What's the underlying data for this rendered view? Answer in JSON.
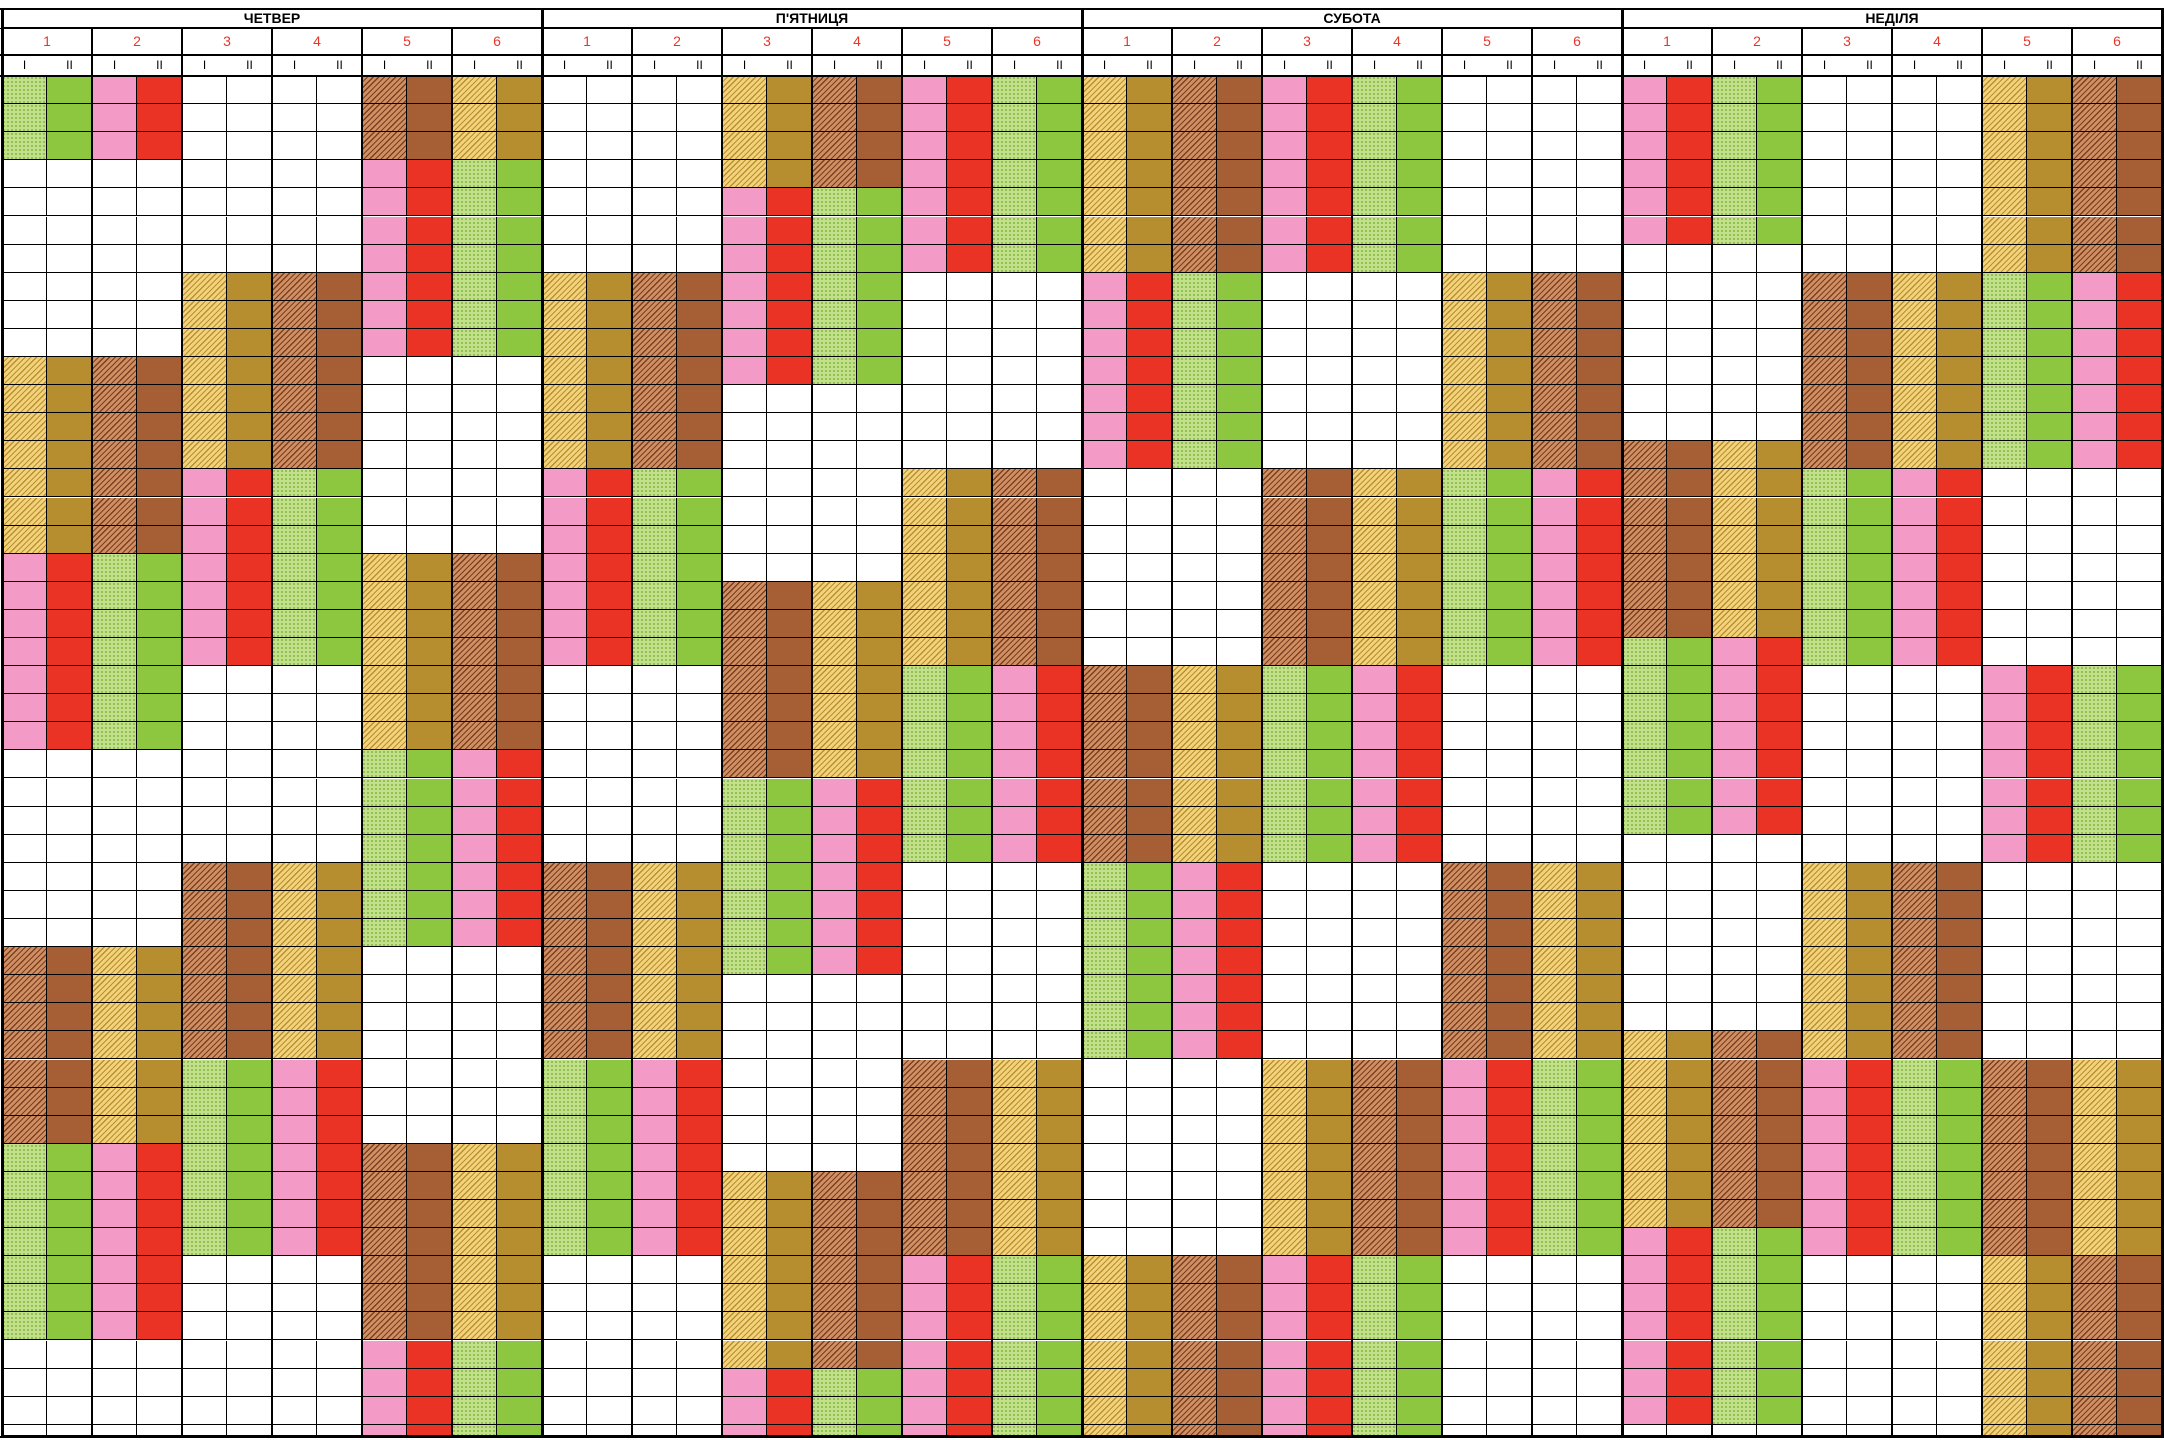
{
  "days": [
    {
      "name": "ЧЕТВЕР"
    },
    {
      "name": "П'ЯТНИЦЯ"
    },
    {
      "name": "СУБОТА"
    },
    {
      "name": "НЕДІЛЯ"
    }
  ],
  "teams": [
    "1",
    "2",
    "3",
    "4",
    "5",
    "6"
  ],
  "shifts": [
    "I",
    "II"
  ],
  "colors": {
    "c-pink": "#f49ac6",
    "c-red": "#ea3324",
    "c-lgreen": "#c3e08c",
    "c-green": "#8dc63f",
    "c-lgold": "#f2d27c",
    "c-gold": "#b68e30",
    "c-lbrown": "#cf8f63",
    "c-brown": "#a65f34"
  },
  "schedule": [
    [
      "G",
      "P",
      "W",
      "W",
      "B",
      "Y",
      "3",
      "G",
      "W",
      "Y",
      "B",
      "P",
      "G",
      "P",
      "Y",
      "B",
      "G",
      "W",
      "W",
      "W",
      "P",
      "G",
      "W",
      "Y",
      "B",
      "W",
      "W",
      "Y",
      "B"
    ],
    [
      "B",
      "Y",
      "P",
      "G",
      "W",
      "W",
      "2",
      "B",
      "W",
      "W",
      "Y",
      "B",
      "P",
      "G",
      "W",
      "Y",
      "B",
      "W",
      "W",
      "W",
      "G",
      "P",
      "W",
      "W",
      "Y",
      "B",
      "G",
      "B",
      "W"
    ],
    [
      "W",
      "P",
      "G",
      "W",
      "B",
      "Y",
      "3",
      "W",
      "P",
      "G",
      "W",
      "B",
      "Y",
      "3",
      "W",
      "B",
      "G",
      "P",
      "W",
      "Y",
      "B",
      "P",
      "G",
      "W",
      "B",
      "Y",
      "G",
      "P",
      "W"
    ],
    [
      "G",
      "P",
      "W",
      "W",
      "Y",
      "B",
      "3",
      "B",
      "W",
      "W",
      "P",
      "G",
      "Y",
      "3",
      "W",
      "Y",
      "B",
      "W",
      "P",
      "G",
      "W",
      "B",
      "Y",
      "G",
      "P",
      "W",
      "W",
      "Y",
      "W"
    ],
    [
      "Y",
      "B",
      "G",
      "P",
      "W",
      "W",
      "2",
      "P",
      "G",
      "W",
      "Y",
      "B",
      "W",
      "W",
      "W",
      "B",
      "Y",
      "G",
      "P",
      "W",
      "W",
      "G",
      "P",
      "W",
      "W",
      "Y",
      "B",
      "W",
      "W"
    ],
    [
      "B",
      "G",
      "P",
      "W",
      "W",
      "Y",
      "2",
      "B",
      "W",
      "W",
      "G",
      "P",
      "Y",
      "3",
      "W",
      "B",
      "Y",
      "W",
      "W",
      "P",
      "G",
      "G",
      "P",
      "W",
      "B",
      "Y",
      "W",
      "W",
      "W"
    ],
    [
      "W",
      "W",
      "B",
      "Y",
      "G",
      "P",
      "3",
      "Y",
      "B",
      "W",
      "P",
      "G",
      "W",
      "W",
      "Y",
      "B",
      "W",
      "W",
      "B",
      "Y",
      "G",
      "P",
      "W",
      "W",
      "B",
      "Y",
      "W",
      "P",
      "W"
    ],
    [
      "P",
      "G",
      "W",
      "W",
      "Y",
      "B",
      "3",
      "W",
      "W",
      "W",
      "Y",
      "B",
      "P",
      "G",
      "Y",
      "B",
      "P",
      "G",
      "W",
      "B",
      "Y",
      "W",
      "W",
      "B",
      "P",
      "Y",
      "B",
      "P",
      "W"
    ]
  ]
}
